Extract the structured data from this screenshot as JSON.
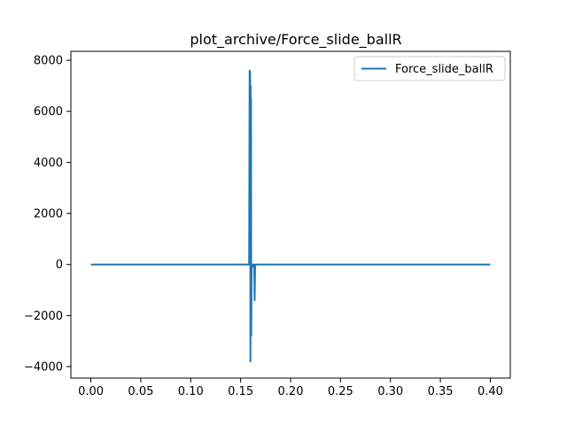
{
  "chart_data": {
    "type": "line",
    "title": "plot_archive/Force_slide_ballR",
    "xlabel": "",
    "ylabel": "",
    "xlim": [
      -0.02,
      0.42
    ],
    "ylim": [
      -4450,
      8350
    ],
    "x_ticks": [
      0.0,
      0.05,
      0.1,
      0.15,
      0.2,
      0.25,
      0.3,
      0.35,
      0.4
    ],
    "x_tick_labels": [
      "0.00",
      "0.05",
      "0.10",
      "0.15",
      "0.20",
      "0.25",
      "0.30",
      "0.35",
      "0.40"
    ],
    "y_ticks": [
      -4000,
      -2000,
      0,
      2000,
      4000,
      6000,
      8000
    ],
    "y_tick_labels": [
      "−4000",
      "−2000",
      "0",
      "2000",
      "4000",
      "6000",
      "8000"
    ],
    "grid": false,
    "legend_position": "top-right",
    "series": [
      {
        "name": "Force_slide_ballR",
        "color": "#1f77b4",
        "x": [
          0.0,
          0.1585,
          0.159,
          0.1595,
          0.1598,
          0.16,
          0.1602,
          0.1604,
          0.1606,
          0.161,
          0.1615,
          0.162,
          0.1625,
          0.163,
          0.1635,
          0.164,
          0.1645,
          0.165,
          0.4
        ],
        "y": [
          0,
          0,
          7600,
          7500,
          -3800,
          7000,
          -2700,
          6500,
          -2800,
          0,
          0,
          0,
          0,
          -100,
          0,
          -1400,
          0,
          0,
          0
        ]
      }
    ]
  }
}
